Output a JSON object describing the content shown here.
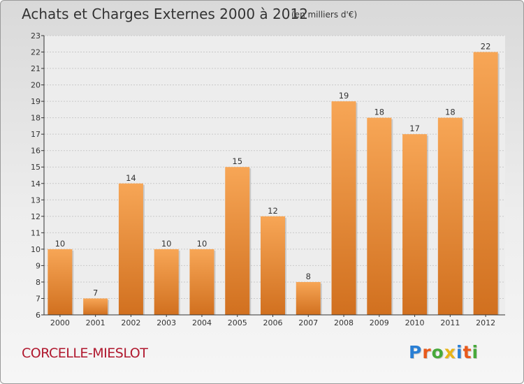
{
  "header": {
    "title": "Achats et Charges Externes 2000 à 2012",
    "subtitle": "(en milliers d'€)"
  },
  "footer": {
    "commune": "CORCELLE-MIESLOT",
    "logo": "Proxiti"
  },
  "colors": {
    "bar_top": "#f7a656",
    "bar_bottom": "#d1701f",
    "logo_letters": [
      "#2a7fd4",
      "#e85a1c",
      "#47a93b",
      "#e8b418",
      "#2a7fd4",
      "#e85a1c",
      "#47a93b"
    ]
  },
  "chart_data": {
    "type": "bar",
    "categories": [
      "2000",
      "2001",
      "2002",
      "2003",
      "2004",
      "2005",
      "2006",
      "2007",
      "2008",
      "2009",
      "2010",
      "2011",
      "2012"
    ],
    "values": [
      10,
      7,
      14,
      10,
      10,
      15,
      12,
      8,
      19,
      18,
      17,
      18,
      22
    ],
    "data_labels": [
      "10",
      "7",
      "14",
      "10",
      "10",
      "15",
      "12",
      "8",
      "19",
      "18",
      "17",
      "18",
      "22"
    ],
    "ylim": [
      6,
      23
    ],
    "yticks": [
      "6",
      "7",
      "8",
      "9",
      "10",
      "11",
      "12",
      "13",
      "14",
      "15",
      "16",
      "17",
      "18",
      "19",
      "20",
      "21",
      "22",
      "23"
    ],
    "grid": true,
    "title": "Achats et Charges Externes 2000 à 2012",
    "xlabel": "",
    "ylabel": ""
  }
}
